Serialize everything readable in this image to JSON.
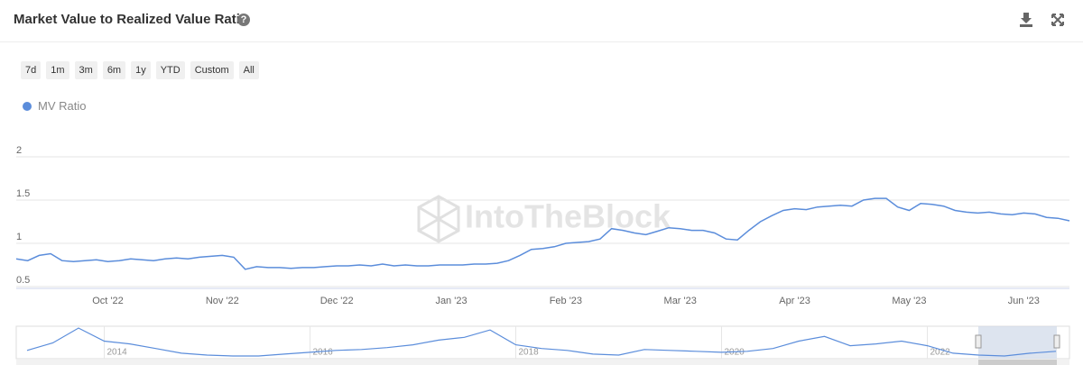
{
  "header": {
    "title": "Market Value to Realized Value Ratio"
  },
  "range_buttons": [
    "7d",
    "1m",
    "3m",
    "6m",
    "1y",
    "YTD",
    "Custom",
    "All"
  ],
  "watermark": "IntoTheBlock",
  "chart_data": {
    "type": "line",
    "categories": [
      null,
      null,
      null,
      null,
      null,
      null,
      null,
      null,
      "Oct '22",
      null,
      null,
      null,
      null,
      null,
      null,
      null,
      null,
      null,
      "Nov '22",
      null,
      null,
      null,
      null,
      null,
      null,
      null,
      null,
      null,
      "Dec '22",
      null,
      null,
      null,
      null,
      null,
      null,
      null,
      null,
      null,
      "Jan '23",
      null,
      null,
      null,
      null,
      null,
      null,
      null,
      null,
      null,
      "Feb '23",
      null,
      null,
      null,
      null,
      null,
      null,
      null,
      null,
      null,
      "Mar '23",
      null,
      null,
      null,
      null,
      null,
      null,
      null,
      null,
      null,
      "Apr '23",
      null,
      null,
      null,
      null,
      null,
      null,
      null,
      null,
      null,
      "May '23",
      null,
      null,
      null,
      null,
      null,
      null,
      null,
      null,
      null,
      "Jun '23",
      null,
      null,
      null,
      null
    ],
    "series": [
      {
        "name": "MV Ratio",
        "color": "#5b8ddb",
        "values": [
          0.82,
          0.8,
          0.86,
          0.88,
          0.8,
          0.79,
          0.8,
          0.81,
          0.79,
          0.8,
          0.82,
          0.81,
          0.8,
          0.82,
          0.83,
          0.82,
          0.84,
          0.85,
          0.86,
          0.84,
          0.7,
          0.73,
          0.72,
          0.72,
          0.71,
          0.72,
          0.72,
          0.73,
          0.74,
          0.74,
          0.75,
          0.74,
          0.76,
          0.74,
          0.75,
          0.74,
          0.74,
          0.75,
          0.75,
          0.75,
          0.76,
          0.76,
          0.77,
          0.8,
          0.86,
          0.93,
          0.94,
          0.96,
          1.0,
          1.01,
          1.02,
          1.05,
          1.17,
          1.15,
          1.12,
          1.1,
          1.14,
          1.18,
          1.17,
          1.15,
          1.15,
          1.12,
          1.05,
          1.04,
          1.15,
          1.25,
          1.32,
          1.38,
          1.4,
          1.39,
          1.42,
          1.43,
          1.44,
          1.43,
          1.5,
          1.52,
          1.52,
          1.42,
          1.38,
          1.46,
          1.45,
          1.43,
          1.38,
          1.36,
          1.35,
          1.36,
          1.34,
          1.33,
          1.35,
          1.34,
          1.3,
          1.29,
          1.26
        ]
      }
    ],
    "ylim": [
      0.5,
      2
    ],
    "yticks": [
      0.5,
      1,
      1.5,
      2
    ],
    "grid": true
  },
  "navigator": {
    "type": "line",
    "categories": [
      null,
      null,
      null,
      "2014",
      null,
      null,
      null,
      null,
      null,
      null,
      null,
      "2016",
      null,
      null,
      null,
      null,
      null,
      null,
      null,
      "2018",
      null,
      null,
      null,
      null,
      null,
      null,
      null,
      "2020",
      null,
      null,
      null,
      null,
      null,
      null,
      null,
      "2022",
      null,
      null,
      null,
      null,
      null
    ],
    "series": [
      {
        "color": "#5b8ddb",
        "values": [
          1.4,
          2.2,
          3.8,
          2.4,
          2.1,
          1.6,
          1.1,
          0.9,
          0.8,
          0.8,
          1.0,
          1.2,
          1.4,
          1.5,
          1.7,
          2.0,
          2.5,
          2.8,
          3.6,
          2.0,
          1.6,
          1.4,
          1.0,
          0.9,
          1.5,
          1.4,
          1.3,
          1.2,
          1.3,
          1.6,
          2.4,
          2.9,
          1.9,
          2.1,
          2.4,
          1.9,
          1.1,
          0.9,
          0.8,
          1.1,
          1.3
        ]
      }
    ]
  }
}
